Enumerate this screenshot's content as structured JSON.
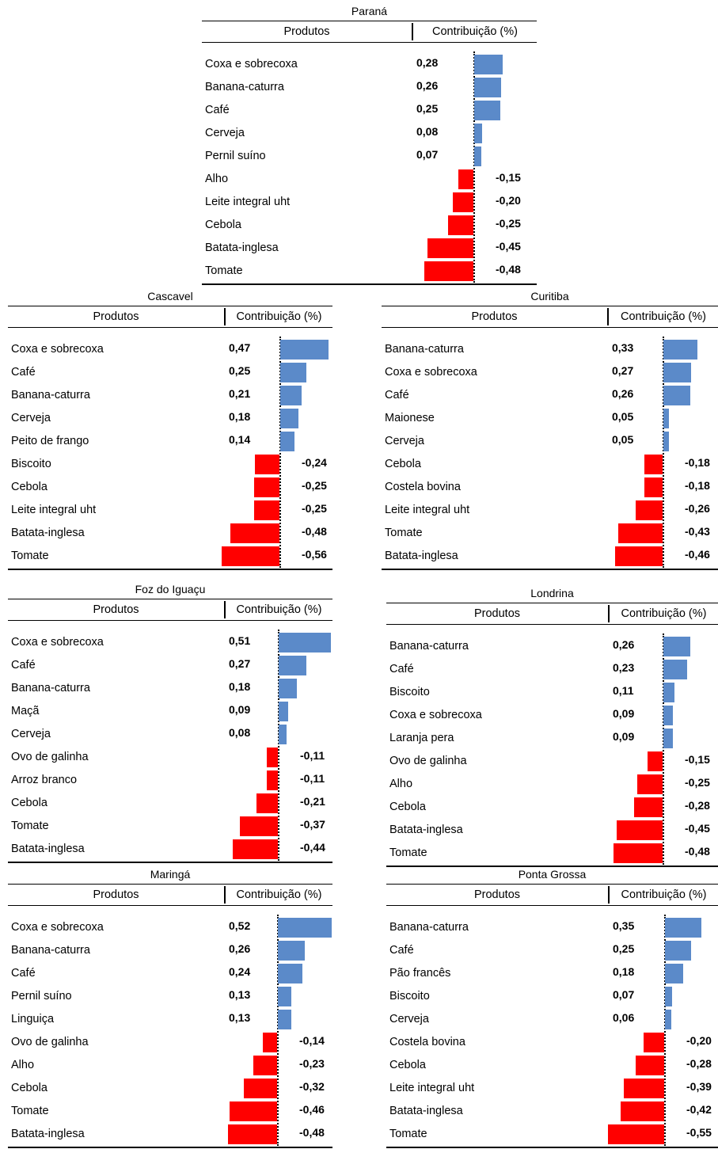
{
  "column_headers": {
    "product": "Produtos",
    "contribution": "Contribuição (%)"
  },
  "colors": {
    "positive": "#5b8ac9",
    "negative": "#ff0000"
  },
  "chart_data": [
    {
      "type": "bar",
      "title": "Paraná",
      "categories": [
        "Coxa e sobrecoxa",
        "Banana-caturra",
        "Café",
        "Cerveja",
        "Pernil suíno",
        "Alho",
        "Leite integral uht",
        "Cebola",
        "Batata-inglesa",
        "Tomate"
      ],
      "values": [
        0.28,
        0.26,
        0.25,
        0.08,
        0.07,
        -0.15,
        -0.2,
        -0.25,
        -0.45,
        -0.48
      ],
      "labels": [
        "0,28",
        "0,26",
        "0,25",
        "0,08",
        "0,07",
        "-0,15",
        "-0,20",
        "-0,25",
        "-0,45",
        "-0,48"
      ]
    },
    {
      "type": "bar",
      "title": "Cascavel",
      "categories": [
        "Coxa e sobrecoxa",
        "Café",
        "Banana-caturra",
        "Cerveja",
        "Peito de frango",
        "Biscoito",
        "Cebola",
        "Leite integral uht",
        "Batata-inglesa",
        "Tomate"
      ],
      "values": [
        0.47,
        0.25,
        0.21,
        0.18,
        0.14,
        -0.24,
        -0.25,
        -0.25,
        -0.48,
        -0.56
      ],
      "labels": [
        "0,47",
        "0,25",
        "0,21",
        "0,18",
        "0,14",
        "-0,24",
        "-0,25",
        "-0,25",
        "-0,48",
        "-0,56"
      ]
    },
    {
      "type": "bar",
      "title": "Curitiba",
      "categories": [
        "Banana-caturra",
        "Coxa e sobrecoxa",
        "Café",
        "Maionese",
        "Cerveja",
        "Cebola",
        "Costela bovina",
        "Leite integral uht",
        "Tomate",
        "Batata-inglesa"
      ],
      "values": [
        0.33,
        0.27,
        0.26,
        0.05,
        0.05,
        -0.18,
        -0.18,
        -0.26,
        -0.43,
        -0.46
      ],
      "labels": [
        "0,33",
        "0,27",
        "0,26",
        "0,05",
        "0,05",
        "-0,18",
        "-0,18",
        "-0,26",
        "-0,43",
        "-0,46"
      ]
    },
    {
      "type": "bar",
      "title": "Foz do Iguaçu",
      "categories": [
        "Coxa e sobrecoxa",
        "Café",
        "Banana-caturra",
        "Maçã",
        "Cerveja",
        "Ovo de galinha",
        "Arroz branco",
        "Cebola",
        "Tomate",
        "Batata-inglesa"
      ],
      "values": [
        0.51,
        0.27,
        0.18,
        0.09,
        0.08,
        -0.11,
        -0.11,
        -0.21,
        -0.37,
        -0.44
      ],
      "labels": [
        "0,51",
        "0,27",
        "0,18",
        "0,09",
        "0,08",
        "-0,11",
        "-0,11",
        "-0,21",
        "-0,37",
        "-0,44"
      ]
    },
    {
      "type": "bar",
      "title": "Londrina",
      "categories": [
        "Banana-caturra",
        "Café",
        "Biscoito",
        "Coxa e sobrecoxa",
        "Laranja pera",
        "Ovo de galinha",
        "Alho",
        "Cebola",
        "Batata-inglesa",
        "Tomate"
      ],
      "values": [
        0.26,
        0.23,
        0.11,
        0.09,
        0.09,
        -0.15,
        -0.25,
        -0.28,
        -0.45,
        -0.48
      ],
      "labels": [
        "0,26",
        "0,23",
        "0,11",
        "0,09",
        "0,09",
        "-0,15",
        "-0,25",
        "-0,28",
        "-0,45",
        "-0,48"
      ]
    },
    {
      "type": "bar",
      "title": "Maringá",
      "categories": [
        "Coxa e sobrecoxa",
        "Banana-caturra",
        "Café",
        "Pernil suíno",
        "Linguiça",
        "Ovo de galinha",
        "Alho",
        "Cebola",
        "Tomate",
        "Batata-inglesa"
      ],
      "values": [
        0.52,
        0.26,
        0.24,
        0.13,
        0.13,
        -0.14,
        -0.23,
        -0.32,
        -0.46,
        -0.48
      ],
      "labels": [
        "0,52",
        "0,26",
        "0,24",
        "0,13",
        "0,13",
        "-0,14",
        "-0,23",
        "-0,32",
        "-0,46",
        "-0,48"
      ]
    },
    {
      "type": "bar",
      "title": "Ponta Grossa",
      "categories": [
        "Banana-caturra",
        "Café",
        "Pão francês",
        "Biscoito",
        "Cerveja",
        "Costela bovina",
        "Cebola",
        "Leite integral uht",
        "Batata-inglesa",
        "Tomate"
      ],
      "values": [
        0.35,
        0.25,
        0.18,
        0.07,
        0.06,
        -0.2,
        -0.28,
        -0.39,
        -0.42,
        -0.55
      ],
      "labels": [
        "0,35",
        "0,25",
        "0,18",
        "0,07",
        "0,06",
        "-0,20",
        "-0,28",
        "-0,39",
        "-0,42",
        "-0,55"
      ]
    }
  ]
}
